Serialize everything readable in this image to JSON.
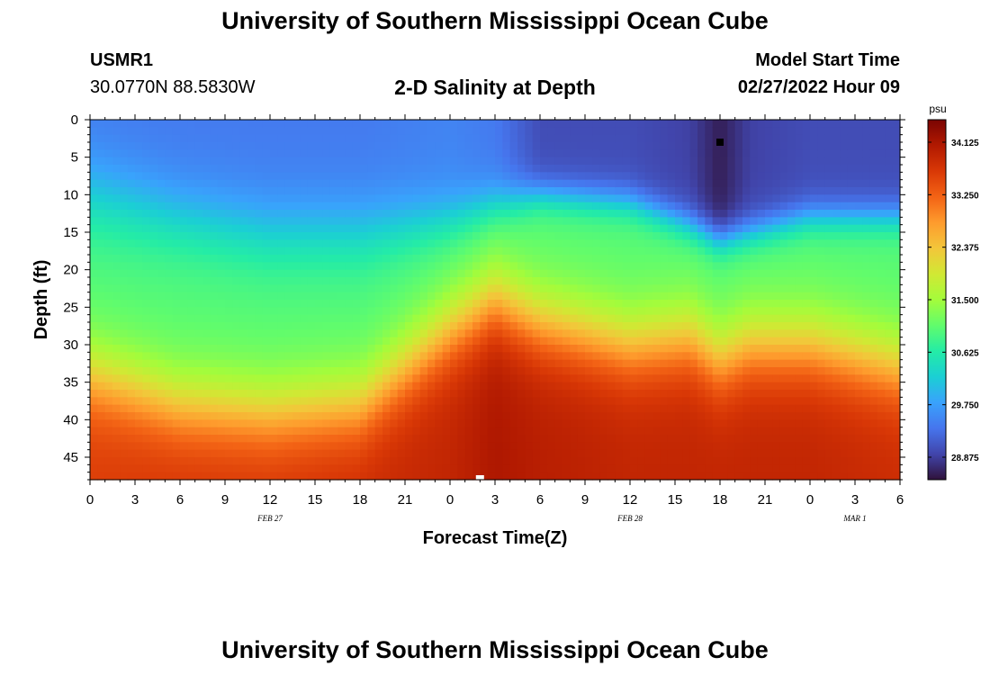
{
  "header": {
    "title": "University of Southern Mississippi Ocean Cube",
    "station_id": "USMR1",
    "coordinates": "30.0770N  88.5830W",
    "subtitle": "2-D Salinity at Depth",
    "start_label": "Model Start Time",
    "start_value": "02/27/2022 Hour 09"
  },
  "footer": {
    "title": "University of Southern Mississippi Ocean Cube"
  },
  "chart_data": {
    "type": "heatmap",
    "title": "2-D Salinity at Depth",
    "xlabel": "Forecast Time(Z)",
    "ylabel": "Depth (ft)",
    "xlim": [
      0,
      54
    ],
    "ylim": [
      48,
      0
    ],
    "x_ticks": [
      0,
      3,
      6,
      9,
      12,
      15,
      18,
      21,
      24,
      27,
      30,
      33,
      36,
      39,
      42,
      45,
      48,
      51,
      54
    ],
    "x_tick_labels": [
      "0",
      "3",
      "6",
      "9",
      "12",
      "15",
      "18",
      "21",
      "0",
      "3",
      "6",
      "9",
      "12",
      "15",
      "18",
      "21",
      "0",
      "3",
      "6"
    ],
    "date_labels": [
      {
        "x": 12,
        "text": "FEB 27"
      },
      {
        "x": 36,
        "text": "FEB 28"
      },
      {
        "x": 51,
        "text": "MAR 1"
      }
    ],
    "y_ticks": [
      0,
      5,
      10,
      15,
      20,
      25,
      30,
      35,
      40,
      45
    ],
    "y_tick_labels": [
      "0",
      "5",
      "10",
      "15",
      "20",
      "25",
      "30",
      "35",
      "40",
      "45"
    ],
    "colorbar": {
      "unit": "psu",
      "min": 28.5,
      "max": 34.5,
      "ticks": [
        34.125,
        33.25,
        32.375,
        31.5,
        30.625,
        29.75,
        28.875
      ],
      "tick_labels": [
        "34.125",
        "33.250",
        "32.375",
        "31.500",
        "30.625",
        "29.750",
        "28.875"
      ]
    },
    "markers": [
      {
        "x": 42,
        "y": 3,
        "kind": "min",
        "color": "#000000"
      },
      {
        "x": 26,
        "y": 48,
        "kind": "max",
        "color": "#ffffff"
      }
    ],
    "time_series_hours": [
      0,
      6,
      12,
      18,
      24,
      27,
      30,
      36,
      40,
      42,
      44,
      48,
      54
    ],
    "top_layer_psu": [
      29.4,
      29.4,
      29.4,
      29.4,
      29.5,
      29.4,
      29.0,
      29.0,
      28.9,
      28.6,
      28.9,
      29.0,
      29.0
    ],
    "mid_depth_ft": [
      10,
      13,
      15,
      15,
      13,
      11,
      10,
      11,
      14,
      16,
      15,
      13,
      13
    ],
    "gradient_width_ft": [
      8,
      7,
      7,
      7,
      5,
      4,
      3,
      3,
      3,
      3,
      3,
      3,
      3
    ],
    "deep_layer_psu": [
      33.6,
      33.7,
      33.7,
      33.8,
      33.9,
      34.1,
      34.0,
      33.9,
      33.9,
      33.9,
      33.9,
      33.9,
      33.8
    ],
    "deep_layer_top_ft": [
      34,
      38,
      39,
      38,
      28,
      24,
      27,
      30,
      29,
      32,
      30,
      30,
      33
    ]
  },
  "colors": {
    "scale": [
      "#30123b",
      "#4145ab",
      "#4675ed",
      "#39a2fc",
      "#1bcfd4",
      "#24eca6",
      "#61fc6c",
      "#a4fc3b",
      "#d1e834",
      "#f3c63a",
      "#fe9b2d",
      "#f36315",
      "#d93806",
      "#b11901",
      "#7a0402"
    ]
  }
}
